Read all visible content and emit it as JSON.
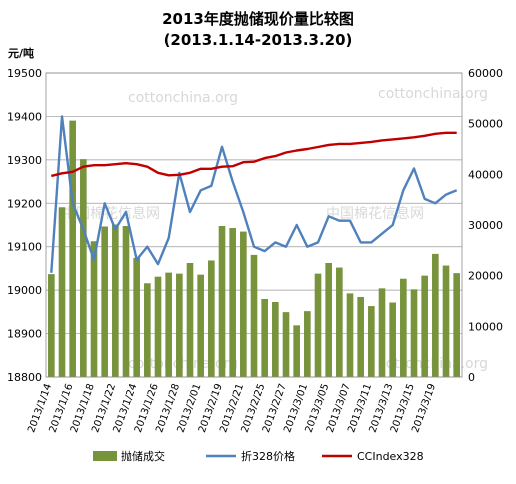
{
  "chart_data": {
    "type": "bar",
    "title": "2013年度抛储现价量比较图",
    "subtitle": "(2013.1.14-2013.3.20)",
    "left_axis_unit": "元/吨",
    "left_ylim": [
      18800,
      19500
    ],
    "left_ticks": [
      18800,
      18900,
      19000,
      19100,
      19200,
      19300,
      19400,
      19500
    ],
    "right_ylim": [
      0,
      60000
    ],
    "right_ticks": [
      0,
      10000,
      20000,
      30000,
      40000,
      50000,
      60000
    ],
    "x_tick_labels": [
      "2013/1/14",
      "2013/1/16",
      "2013/1/18",
      "2013/1/22",
      "2013/1/24",
      "2013/1/26",
      "2013/1/28",
      "2013/2/01",
      "2013/2/19",
      "2013/2/21",
      "2013/2/25",
      "2013/2/27",
      "2013/3/01",
      "2013/3/05",
      "2013/3/07",
      "2013/3/11",
      "2013/3/13",
      "2013/3/15",
      "2013/3/19"
    ],
    "grid": "horizontal",
    "legend_position": "bottom",
    "series": [
      {
        "name": "抛储成交",
        "type": "bar",
        "axis": "right",
        "color": "#77933c",
        "values": [
          20300,
          33500,
          50600,
          43000,
          26800,
          29700,
          30100,
          29800,
          23500,
          18500,
          19800,
          20600,
          20400,
          22500,
          20200,
          23000,
          29800,
          29400,
          28700,
          24100,
          15400,
          14800,
          12800,
          10200,
          13000,
          20400,
          22500,
          21600,
          16500,
          15800,
          14000,
          17500,
          14700,
          19400,
          17300,
          20000,
          24300,
          22000,
          20500
        ]
      },
      {
        "name": "折328价格",
        "type": "line",
        "axis": "left",
        "color": "#4f81bd",
        "values": [
          19040,
          19400,
          19200,
          19140,
          19070,
          19200,
          19140,
          19180,
          19070,
          19100,
          19060,
          19120,
          19270,
          19180,
          19230,
          19240,
          19330,
          19250,
          19180,
          19100,
          19090,
          19110,
          19100,
          19150,
          19100,
          19110,
          19170,
          19160,
          19160,
          19110,
          19110,
          19130,
          19150,
          19230,
          19280,
          19210,
          19200,
          19220,
          19230
        ]
      },
      {
        "name": "CCIndex328",
        "type": "line",
        "axis": "right",
        "color": "#c00000",
        "values": [
          39700,
          40200,
          40500,
          41500,
          41800,
          41800,
          42000,
          42200,
          42000,
          41500,
          40300,
          39800,
          39900,
          40300,
          41100,
          41100,
          41500,
          41600,
          42400,
          42500,
          43200,
          43600,
          44300,
          44700,
          45000,
          45400,
          45800,
          46000,
          46000,
          46200,
          46400,
          46700,
          46900,
          47100,
          47300,
          47600,
          48000,
          48200,
          48200
        ]
      }
    ]
  },
  "watermarks": [
    "cottonchina.org",
    "中国棉花信息网"
  ]
}
